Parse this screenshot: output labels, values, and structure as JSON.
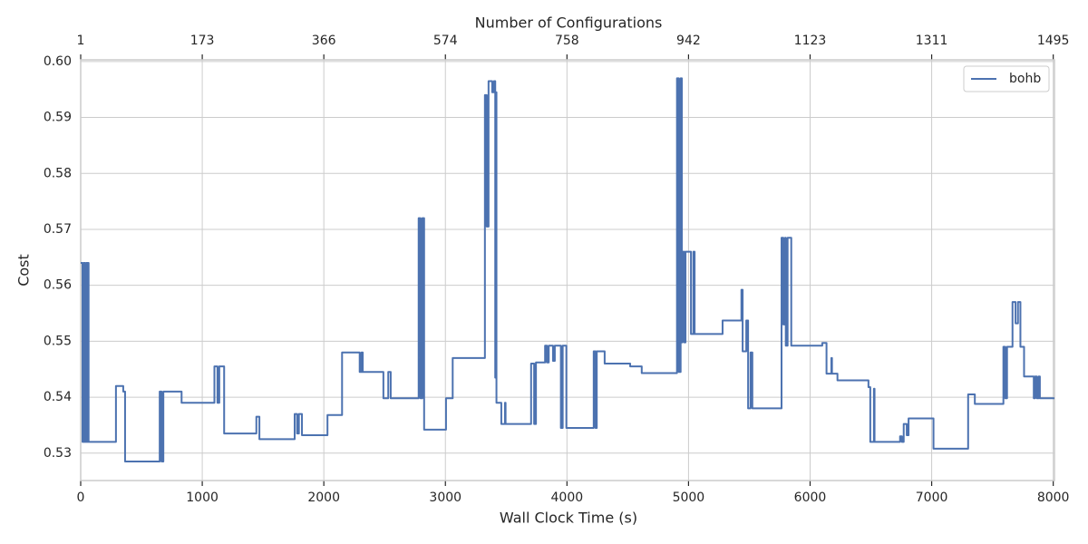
{
  "chart_data": {
    "type": "line",
    "drawstyle": "steps-post",
    "xlabel": "Wall Clock Time (s)",
    "ylabel": "Cost",
    "x2label": "Number of Configurations",
    "xlim": [
      0,
      8010
    ],
    "ylim": [
      0.5251,
      0.6003
    ],
    "xticks": [
      0,
      1000,
      2000,
      3000,
      4000,
      5000,
      6000,
      7000,
      8000
    ],
    "x2ticks": [
      {
        "value": 0,
        "label": "1"
      },
      {
        "value": 1000,
        "label": "173"
      },
      {
        "value": 2000,
        "label": "366"
      },
      {
        "value": 3000,
        "label": "574"
      },
      {
        "value": 4000,
        "label": "758"
      },
      {
        "value": 5000,
        "label": "942"
      },
      {
        "value": 6000,
        "label": "1123"
      },
      {
        "value": 7000,
        "label": "1311"
      },
      {
        "value": 8000,
        "label": "1495"
      }
    ],
    "yticks": [
      0.53,
      0.54,
      0.55,
      0.56,
      0.57,
      0.58,
      0.59,
      {
        "value": 0.6,
        "label": "0.60"
      }
    ],
    "grid": true,
    "legend": "upper right",
    "series": [
      {
        "name": "bohb",
        "color": "#4c72b0",
        "x": [
          0,
          15,
          25,
          35,
          45,
          55,
          60,
          65,
          290,
          350,
          365,
          650,
          665,
          680,
          830,
          1100,
          1125,
          1140,
          1180,
          1445,
          1470,
          1760,
          1780,
          1795,
          1820,
          2030,
          2150,
          2295,
          2310,
          2320,
          2490,
          2530,
          2550,
          2780,
          2795,
          2810,
          2825,
          3005,
          3060,
          3325,
          3340,
          3355,
          3385,
          3400,
          3410,
          3415,
          3420,
          3460,
          3490,
          3495,
          3705,
          3730,
          3745,
          3820,
          3835,
          3850,
          3885,
          3900,
          3950,
          3965,
          3995,
          4220,
          4235,
          4245,
          4310,
          4520,
          4615,
          4905,
          4920,
          4935,
          4945,
          4950,
          4965,
          4975,
          5020,
          5040,
          5050,
          5280,
          5435,
          5445,
          5475,
          5490,
          5510,
          5525,
          5765,
          5780,
          5795,
          5800,
          5815,
          5845,
          6100,
          6135,
          6175,
          6180,
          6225,
          6480,
          6495,
          6525,
          6530,
          6740,
          6755,
          6770,
          6795,
          6810,
          7015,
          7300,
          7355,
          7590,
          7605,
          7620,
          7665,
          7690,
          7710,
          7730,
          7760,
          7840,
          7850,
          7865,
          7880,
          7890,
          8010
        ],
        "values": [
          0.564,
          0.532,
          0.564,
          0.532,
          0.564,
          0.532,
          0.564,
          0.532,
          0.542,
          0.541,
          0.5285,
          0.541,
          0.5285,
          0.541,
          0.539,
          0.5455,
          0.539,
          0.5455,
          0.5335,
          0.5365,
          0.5325,
          0.537,
          0.5335,
          0.537,
          0.5332,
          0.5368,
          0.548,
          0.5445,
          0.548,
          0.5445,
          0.5398,
          0.5445,
          0.5398,
          0.572,
          0.5398,
          0.572,
          0.5342,
          0.5398,
          0.547,
          0.594,
          0.5705,
          0.5965,
          0.5945,
          0.5965,
          0.5435,
          0.5945,
          0.539,
          0.5352,
          0.539,
          0.5352,
          0.546,
          0.5352,
          0.5462,
          0.5492,
          0.5462,
          0.5492,
          0.5465,
          0.5492,
          0.5345,
          0.5492,
          0.5345,
          0.5482,
          0.5345,
          0.5482,
          0.546,
          0.5455,
          0.5443,
          0.597,
          0.5445,
          0.597,
          0.5498,
          0.566,
          0.5498,
          0.566,
          0.5513,
          0.566,
          0.5513,
          0.5537,
          0.5592,
          0.5482,
          0.5537,
          0.538,
          0.548,
          0.538,
          0.5685,
          0.553,
          0.5685,
          0.5492,
          0.5685,
          0.5492,
          0.5497,
          0.5442,
          0.547,
          0.5442,
          0.543,
          0.5418,
          0.532,
          0.5415,
          0.532,
          0.533,
          0.532,
          0.5352,
          0.5332,
          0.5362,
          0.5308,
          0.5405,
          0.5388,
          0.549,
          0.5398,
          0.549,
          0.557,
          0.5532,
          0.557,
          0.549,
          0.5437,
          0.5398,
          0.5437,
          0.5398,
          0.5437,
          0.5398,
          0.5398
        ]
      }
    ]
  }
}
